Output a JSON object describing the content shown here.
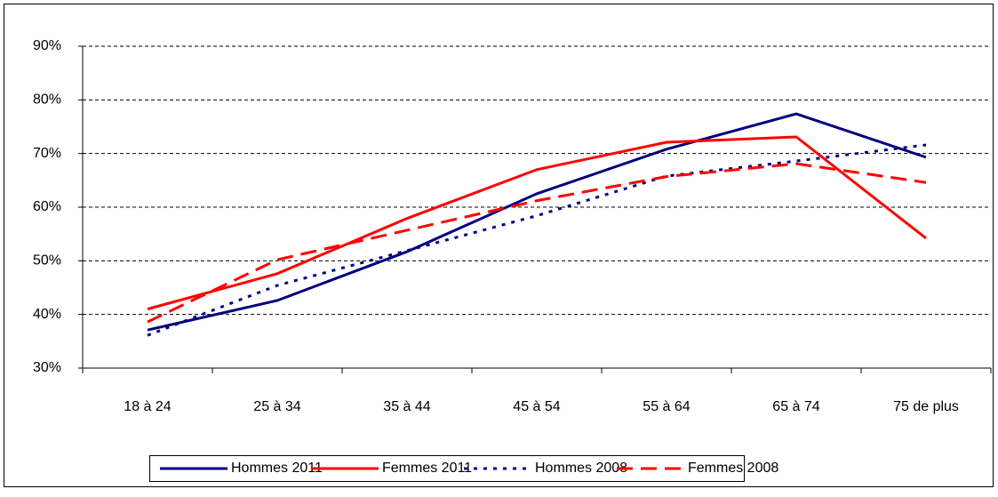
{
  "chart_data": {
    "type": "line",
    "categories": [
      "18 à 24",
      "25 à 34",
      "35 à 44",
      "45 à 54",
      "55 à 64",
      "65 à 74",
      "75 de plus"
    ],
    "series": [
      {
        "name": "Hommes 2011",
        "color": "#000080",
        "dash": "solid",
        "values": [
          37.1,
          42.6,
          51.7,
          62.5,
          70.8,
          77.4,
          69.3
        ]
      },
      {
        "name": "Femmes 2011",
        "color": "#ff0000",
        "dash": "solid",
        "values": [
          41.0,
          47.6,
          57.9,
          67.0,
          72.1,
          73.1,
          54.2
        ]
      },
      {
        "name": "Hommes 2008",
        "color": "#000080",
        "dash": "dotted",
        "values": [
          36.1,
          45.4,
          51.9,
          58.4,
          65.8,
          68.6,
          71.6
        ]
      },
      {
        "name": "Femmes 2008",
        "color": "#ff0000",
        "dash": "dashed",
        "values": [
          38.6,
          50.2,
          55.7,
          61.2,
          65.7,
          68.1,
          64.6
        ]
      }
    ],
    "ylim": [
      30,
      90
    ],
    "yticks": [
      {
        "value": 30,
        "label": "30%"
      },
      {
        "value": 40,
        "label": "40%"
      },
      {
        "value": 50,
        "label": "50%"
      },
      {
        "value": 60,
        "label": "60%"
      },
      {
        "value": 70,
        "label": "70%"
      },
      {
        "value": 80,
        "label": "80%"
      },
      {
        "value": 90,
        "label": "90%"
      }
    ],
    "grid": true,
    "legend": "bottom"
  }
}
